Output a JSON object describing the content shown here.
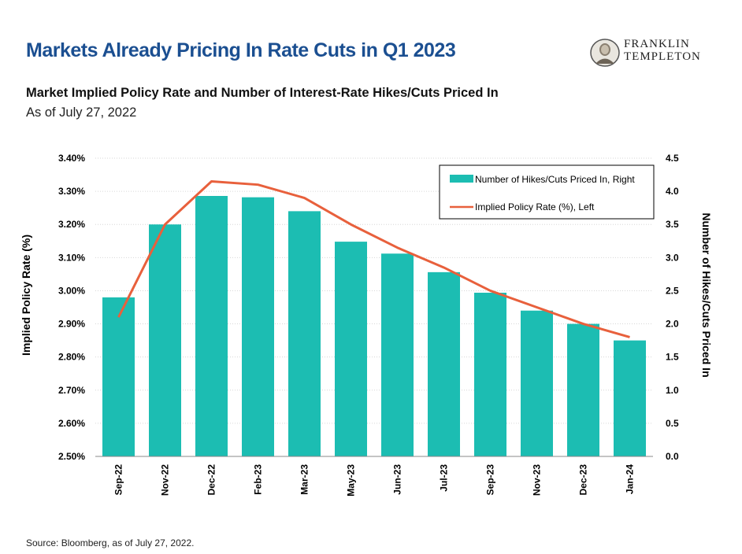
{
  "header": {
    "title": "Markets Already Pricing In Rate Cuts in Q1 2023",
    "logo_line1": "FRANKLIN",
    "logo_line2": "TEMPLETON"
  },
  "chart_data": {
    "type": "bar",
    "title": "Market Implied Policy Rate and Number of Interest-Rate Hikes/Cuts Priced In",
    "subtitle": "As of July 27, 2022",
    "categories": [
      "Sep-22",
      "Nov-22",
      "Dec-22",
      "Feb-23",
      "Mar-23",
      "May-23",
      "Jun-23",
      "Jul-23",
      "Sep-23",
      "Nov-23",
      "Dec-23",
      "Jan-24"
    ],
    "series": [
      {
        "name": "Number of Hikes/Cuts Priced In, Right",
        "type": "bar",
        "axis": "right",
        "color": "#1cbdb2",
        "values": [
          2.4,
          3.5,
          3.93,
          3.91,
          3.7,
          3.24,
          3.06,
          2.78,
          2.47,
          2.2,
          2.0,
          1.75
        ]
      },
      {
        "name": "Implied Policy Rate (%), Left",
        "type": "line",
        "axis": "left",
        "color": "#e8603c",
        "values": [
          2.92,
          3.2,
          3.33,
          3.32,
          3.28,
          3.2,
          3.13,
          3.07,
          3.0,
          2.95,
          2.9,
          2.86
        ]
      }
    ],
    "left_axis": {
      "label": "Implied Policy Rate (%)",
      "ylim": [
        2.5,
        3.4
      ],
      "ticks": [
        "2.50%",
        "2.60%",
        "2.70%",
        "2.80%",
        "2.90%",
        "3.00%",
        "3.10%",
        "3.20%",
        "3.30%",
        "3.40%"
      ]
    },
    "right_axis": {
      "label": "Number of Hikes/Cuts Priced In",
      "ylim": [
        0,
        4.5
      ],
      "ticks": [
        "0.0",
        "0.5",
        "1.0",
        "1.5",
        "2.0",
        "2.5",
        "3.0",
        "3.5",
        "4.0",
        "4.5"
      ]
    },
    "grid": true,
    "legend_position": "top-right"
  },
  "footer": {
    "source": "Source: Bloomberg, as of July 27, 2022."
  }
}
